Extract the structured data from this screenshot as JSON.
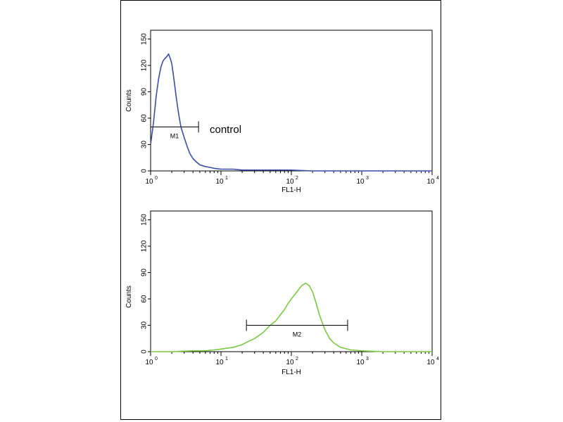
{
  "chart_data": [
    {
      "type": "line",
      "title": "",
      "xlabel": "FL1-H",
      "ylabel": "Counts",
      "x_scale": "log",
      "xlim": [
        1,
        10000
      ],
      "ylim": [
        0,
        160
      ],
      "x_ticks": [
        {
          "base": "10",
          "exp": "0"
        },
        {
          "base": "10",
          "exp": "1"
        },
        {
          "base": "10",
          "exp": "2"
        },
        {
          "base": "10",
          "exp": "3"
        },
        {
          "base": "10",
          "exp": "4"
        }
      ],
      "y_ticks": [
        "0",
        "30",
        "60",
        "90",
        "120",
        "150"
      ],
      "grid": false,
      "series": [
        {
          "color": "#3a4fa8",
          "x": [
            1.0,
            1.1,
            1.2,
            1.3,
            1.4,
            1.5,
            1.6,
            1.7,
            1.8,
            1.9,
            2.0,
            2.1,
            2.2,
            2.3,
            2.5,
            2.7,
            3.0,
            3.3,
            3.6,
            4.0,
            4.5,
            5.0,
            6.0,
            7.0,
            8.0,
            10,
            15,
            20,
            30,
            50,
            100,
            200,
            500,
            1000,
            10000
          ],
          "y": [
            30,
            55,
            85,
            105,
            118,
            125,
            128,
            130,
            133,
            128,
            122,
            110,
            98,
            85,
            65,
            50,
            38,
            28,
            20,
            14,
            10,
            7,
            5,
            4,
            3,
            2,
            2,
            1,
            1,
            1,
            1,
            0,
            0,
            0,
            0
          ]
        }
      ],
      "marker": {
        "label": "M1",
        "x_range": [
          1,
          4.8
        ],
        "y": 50
      },
      "annotation": "control"
    },
    {
      "type": "line",
      "title": "",
      "xlabel": "FL1-H",
      "ylabel": "Counts",
      "x_scale": "log",
      "xlim": [
        1,
        10000
      ],
      "ylim": [
        0,
        160
      ],
      "x_ticks": [
        {
          "base": "10",
          "exp": "0"
        },
        {
          "base": "10",
          "exp": "1"
        },
        {
          "base": "10",
          "exp": "2"
        },
        {
          "base": "10",
          "exp": "3"
        },
        {
          "base": "10",
          "exp": "4"
        }
      ],
      "y_ticks": [
        "0",
        "30",
        "60",
        "90",
        "120",
        "150"
      ],
      "grid": false,
      "series": [
        {
          "color": "#7ac943",
          "x": [
            1.0,
            2,
            4,
            6,
            8,
            10,
            15,
            20,
            25,
            30,
            40,
            50,
            60,
            70,
            80,
            90,
            100,
            120,
            140,
            160,
            180,
            200,
            220,
            250,
            300,
            350,
            400,
            500,
            700,
            1000,
            2000,
            10000
          ],
          "y": [
            0,
            0,
            1,
            1,
            2,
            3,
            5,
            8,
            12,
            15,
            22,
            30,
            35,
            42,
            48,
            55,
            60,
            68,
            75,
            78,
            75,
            68,
            58,
            42,
            25,
            15,
            10,
            5,
            2,
            1,
            0,
            0
          ]
        }
      ],
      "marker": {
        "label": "M2",
        "x_range": [
          23,
          630
        ],
        "y": 30
      },
      "annotation": ""
    }
  ]
}
